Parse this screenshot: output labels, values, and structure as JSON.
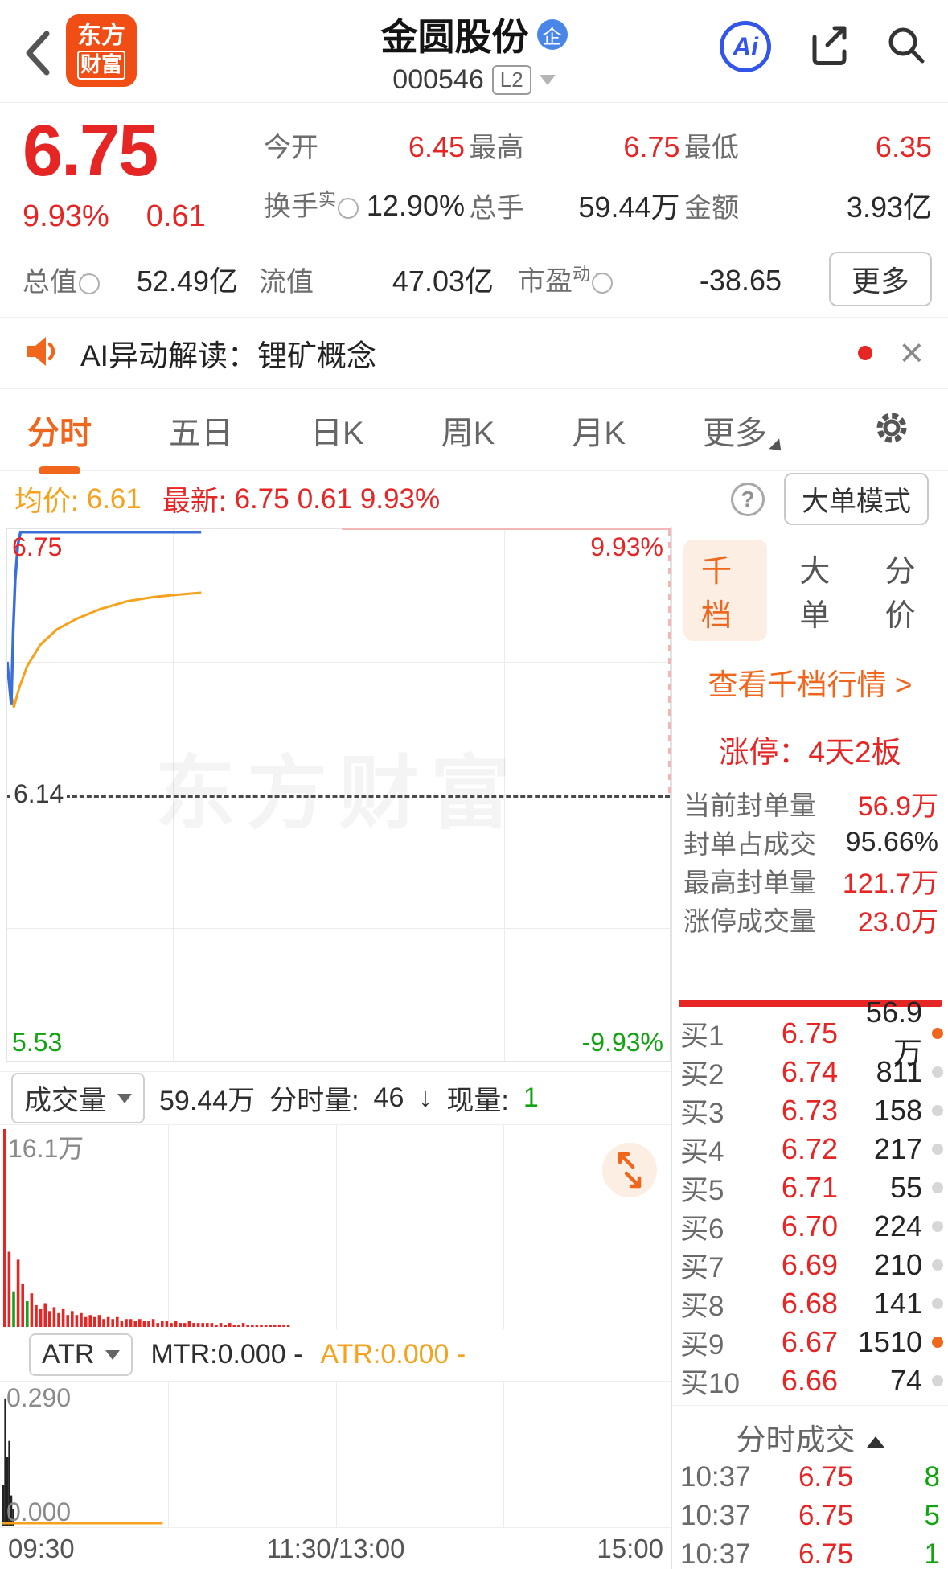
{
  "header": {
    "logo_line1": "东方",
    "logo_line2": "财富",
    "title": "金圆股份",
    "title_badge": "企",
    "code": "000546",
    "level_badge": "L2",
    "ai_label": "Ai"
  },
  "summary": {
    "price": "6.75",
    "change_pct": "9.93%",
    "change_abs": "0.61",
    "r1": [
      {
        "label": "今开",
        "value": "6.45"
      },
      {
        "label": "最高",
        "value": "6.75"
      },
      {
        "label": "最低",
        "value": "6.35"
      }
    ],
    "r2": [
      {
        "label": "换手",
        "sup": "实",
        "value": "12.90%"
      },
      {
        "label": "总手",
        "value": "59.44万"
      },
      {
        "label": "金额",
        "value": "3.93亿"
      }
    ],
    "r3": [
      {
        "label": "总值",
        "value": "52.49亿"
      },
      {
        "label": "流值",
        "value": "47.03亿"
      },
      {
        "label": "市盈",
        "sup": "动",
        "value": "-38.65"
      }
    ],
    "more_label": "更多"
  },
  "ai_bar": {
    "text": "AI异动解读：锂矿概念"
  },
  "tabs": {
    "items": [
      {
        "label": "分时"
      },
      {
        "label": "五日"
      },
      {
        "label": "日K"
      },
      {
        "label": "周K"
      },
      {
        "label": "月K"
      },
      {
        "label": "更多"
      }
    ]
  },
  "avg_row": {
    "avg_label": "均价:",
    "avg_value": "6.61",
    "last_label": "最新:",
    "last_value": "6.75",
    "last_abs": "0.61",
    "last_pct": "9.93%",
    "help": "?",
    "bigorder_label": "大单模式"
  },
  "chart": {
    "top_left": "6.75",
    "top_right": "9.93%",
    "mid": "6.14",
    "bottom_left": "5.53",
    "bottom_right": "-9.93%",
    "watermark": "东方财富"
  },
  "chart_data": {
    "type": "line",
    "price_axis": {
      "max": 6.75,
      "mid": 6.14,
      "min": 5.53,
      "pct_max": "9.93%",
      "pct_min": "-9.93%"
    },
    "price_line": [
      [
        0,
        6.45
      ],
      [
        0.003,
        6.4
      ],
      [
        0.006,
        6.35
      ],
      [
        0.009,
        6.52
      ],
      [
        0.012,
        6.64
      ],
      [
        0.016,
        6.72
      ],
      [
        0.02,
        6.75
      ],
      [
        0.292,
        6.75
      ]
    ],
    "avg_line": [
      [
        0,
        6.43
      ],
      [
        0.005,
        6.38
      ],
      [
        0.01,
        6.345
      ],
      [
        0.018,
        6.39
      ],
      [
        0.03,
        6.44
      ],
      [
        0.05,
        6.49
      ],
      [
        0.075,
        6.525
      ],
      [
        0.105,
        6.55
      ],
      [
        0.14,
        6.572
      ],
      [
        0.18,
        6.59
      ],
      [
        0.22,
        6.6
      ],
      [
        0.26,
        6.606
      ],
      [
        0.292,
        6.61
      ]
    ],
    "volume_max_label": "16.1万",
    "volume_bars": [
      [
        1.0,
        "r"
      ],
      [
        0.38,
        "r"
      ],
      [
        0.18,
        "g"
      ],
      [
        0.34,
        "r"
      ],
      [
        0.22,
        "r"
      ],
      [
        0.13,
        "g"
      ],
      [
        0.17,
        "r"
      ],
      [
        0.11,
        "r"
      ],
      [
        0.09,
        "r"
      ],
      [
        0.12,
        "r"
      ],
      [
        0.08,
        "r"
      ],
      [
        0.1,
        "r"
      ],
      [
        0.07,
        "r"
      ],
      [
        0.09,
        "r"
      ],
      [
        0.06,
        "r"
      ],
      [
        0.08,
        "r"
      ],
      [
        0.06,
        "r"
      ],
      [
        0.07,
        "r"
      ],
      [
        0.05,
        "r"
      ],
      [
        0.06,
        "r"
      ],
      [
        0.05,
        "r"
      ],
      [
        0.06,
        "r"
      ],
      [
        0.04,
        "r"
      ],
      [
        0.05,
        "r"
      ],
      [
        0.04,
        "r"
      ],
      [
        0.05,
        "r"
      ],
      [
        0.03,
        "r"
      ],
      [
        0.04,
        "r"
      ],
      [
        0.04,
        "r"
      ],
      [
        0.03,
        "r"
      ],
      [
        0.04,
        "r"
      ],
      [
        0.03,
        "r"
      ],
      [
        0.03,
        "r"
      ],
      [
        0.04,
        "r"
      ],
      [
        0.02,
        "r"
      ],
      [
        0.03,
        "r"
      ],
      [
        0.03,
        "r"
      ],
      [
        0.02,
        "r"
      ],
      [
        0.03,
        "r"
      ],
      [
        0.02,
        "r"
      ],
      [
        0.02,
        "r"
      ],
      [
        0.03,
        "r"
      ],
      [
        0.02,
        "r"
      ],
      [
        0.02,
        "r"
      ],
      [
        0.02,
        "r"
      ],
      [
        0.02,
        "r"
      ],
      [
        0.02,
        "r"
      ],
      [
        0.01,
        "r"
      ],
      [
        0.02,
        "r"
      ],
      [
        0.01,
        "r"
      ],
      [
        0.02,
        "r"
      ],
      [
        0.01,
        "r"
      ],
      [
        0.01,
        "r"
      ],
      [
        0.02,
        "r"
      ],
      [
        0.01,
        "r"
      ],
      [
        0.01,
        "r"
      ],
      [
        0.01,
        "r"
      ],
      [
        0.01,
        "r"
      ],
      [
        0.01,
        "r"
      ],
      [
        0.01,
        "r"
      ],
      [
        0.01,
        "r"
      ],
      [
        0.01,
        "r"
      ],
      [
        0.01,
        "r"
      ],
      [
        0.01,
        "r"
      ]
    ],
    "atr_max_label": "0.290",
    "atr_min_label": "0.000",
    "atr_spikes": [
      [
        0.005,
        0.3
      ],
      [
        0.008,
        0.93
      ],
      [
        0.011,
        0.5
      ],
      [
        0.014,
        0.62
      ],
      [
        0.017,
        0.22
      ],
      [
        0.02,
        0.12
      ]
    ],
    "atr_orange_end": 0.245
  },
  "volume": {
    "selector": "成交量",
    "total": "59.44万",
    "minute_label": "分时量:",
    "minute_value": "46",
    "arrow": "↓",
    "now_label": "现量:",
    "now_value": "1"
  },
  "atr": {
    "selector": "ATR",
    "mtr_text": "MTR:0.000 -",
    "atr_text": "ATR:0.000 -"
  },
  "time_axis": [
    "09:30",
    "11:30/13:00",
    "15:00"
  ],
  "panel": {
    "tabs": [
      {
        "label": "千档"
      },
      {
        "label": "大单"
      },
      {
        "label": "分价"
      }
    ],
    "link": "查看千档行情 >",
    "limit_up": "涨停：4天2板",
    "stats": [
      {
        "label": "当前封单量",
        "value": "56.9万",
        "color": "red"
      },
      {
        "label": "封单占成交",
        "value": "95.66%",
        "color": "dark"
      },
      {
        "label": "最高封单量",
        "value": "121.7万",
        "color": "red"
      },
      {
        "label": "涨停成交量",
        "value": "23.0万",
        "color": "red"
      }
    ],
    "orders": [
      {
        "label": "买1",
        "price": "6.75",
        "qty": "56.9万",
        "hot": true
      },
      {
        "label": "买2",
        "price": "6.74",
        "qty": "811",
        "hot": false
      },
      {
        "label": "买3",
        "price": "6.73",
        "qty": "158",
        "hot": false
      },
      {
        "label": "买4",
        "price": "6.72",
        "qty": "217",
        "hot": false
      },
      {
        "label": "买5",
        "price": "6.71",
        "qty": "55",
        "hot": false
      },
      {
        "label": "买6",
        "price": "6.70",
        "qty": "224",
        "hot": false
      },
      {
        "label": "买7",
        "price": "6.69",
        "qty": "210",
        "hot": false
      },
      {
        "label": "买8",
        "price": "6.68",
        "qty": "141",
        "hot": false
      },
      {
        "label": "买9",
        "price": "6.67",
        "qty": "1510",
        "hot": true
      },
      {
        "label": "买10",
        "price": "6.66",
        "qty": "74",
        "hot": false
      }
    ],
    "trades_header": "分时成交",
    "trades": [
      {
        "time": "10:37",
        "price": "6.75",
        "qty": "8"
      },
      {
        "time": "10:37",
        "price": "6.75",
        "qty": "5"
      },
      {
        "time": "10:37",
        "price": "6.75",
        "qty": "1"
      }
    ]
  }
}
